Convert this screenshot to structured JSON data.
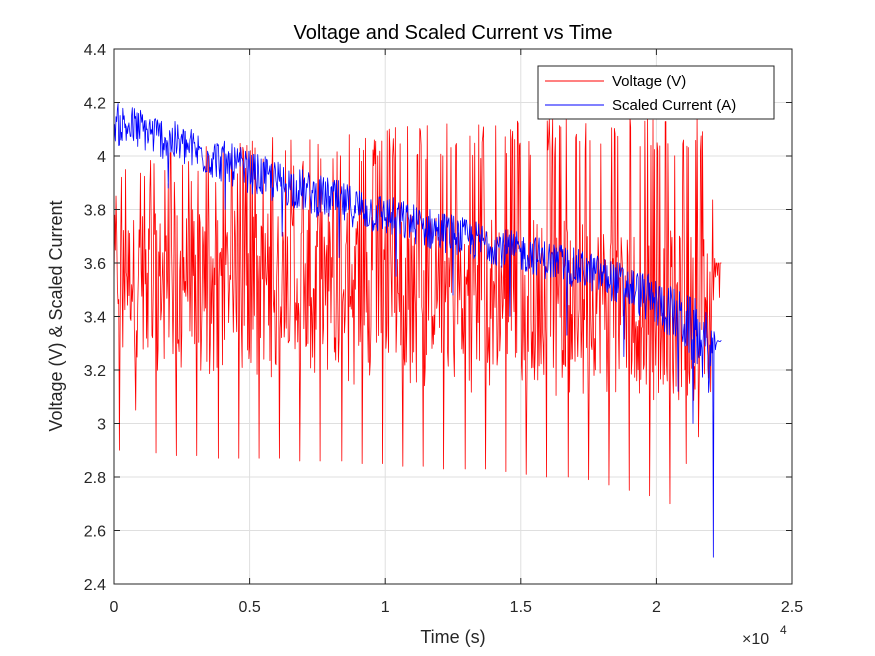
{
  "chart_data": {
    "type": "line",
    "title": "Voltage and Scaled Current vs Time",
    "xlabel": "Time (s)",
    "ylabel": "Voltage (V) & Scaled Current",
    "x_exponent_base": "×10",
    "x_exponent_power": "4",
    "xlim": [
      0,
      25000
    ],
    "ylim": [
      2.4,
      4.4
    ],
    "x_ticks": [
      0,
      5000,
      10000,
      15000,
      20000,
      25000
    ],
    "x_tick_labels": [
      "0",
      "0.5",
      "1",
      "1.5",
      "2",
      "2.5"
    ],
    "y_ticks": [
      2.4,
      2.6,
      2.8,
      3.0,
      3.2,
      3.4,
      3.6,
      3.8,
      4.0,
      4.2,
      4.4
    ],
    "y_tick_labels": [
      "2.4",
      "2.6",
      "2.8",
      "3",
      "3.2",
      "3.4",
      "3.6",
      "3.8",
      "4",
      "4.2",
      "4.4"
    ],
    "grid": true,
    "legend_position": "top-right",
    "series": [
      {
        "name": "Voltage (V)",
        "color": "#ff0000",
        "x": [
          0,
          500,
          1000,
          1500,
          2000,
          2500,
          3000,
          3500,
          4000,
          4500,
          5000,
          5500,
          6000,
          6500,
          7000,
          7500,
          8000,
          8500,
          9000,
          9500,
          10000,
          10500,
          11000,
          11500,
          12000,
          12500,
          13000,
          13500,
          14000,
          14500,
          15000,
          15500,
          16000,
          16500,
          17000,
          17500,
          18000,
          18500,
          19000,
          19500,
          20000,
          20500,
          21000,
          21500,
          22000,
          22200,
          22400
        ],
        "mid": [
          3.58,
          3.56,
          3.57,
          3.56,
          3.55,
          3.56,
          3.57,
          3.56,
          3.55,
          3.56,
          3.56,
          3.55,
          3.56,
          3.55,
          3.54,
          3.55,
          3.55,
          3.54,
          3.55,
          3.54,
          3.53,
          3.54,
          3.53,
          3.52,
          3.53,
          3.52,
          3.51,
          3.52,
          3.51,
          3.5,
          3.5,
          3.49,
          3.49,
          3.48,
          3.48,
          3.47,
          3.47,
          3.46,
          3.45,
          3.45,
          3.44,
          3.43,
          3.42,
          3.42,
          3.45,
          3.6,
          3.6
        ],
        "hi": [
          3.98,
          4.0,
          4.02,
          4.02,
          4.03,
          4.04,
          4.04,
          4.05,
          4.05,
          4.06,
          4.06,
          4.07,
          4.07,
          4.08,
          4.08,
          4.09,
          4.09,
          4.1,
          4.1,
          4.1,
          4.11,
          4.11,
          4.12,
          4.12,
          4.12,
          4.13,
          4.13,
          4.13,
          4.13,
          4.14,
          4.14,
          4.14,
          4.14,
          4.14,
          4.15,
          4.15,
          4.15,
          4.15,
          4.15,
          4.15,
          4.15,
          4.15,
          4.15,
          4.15,
          4.15,
          3.6,
          3.6
        ],
        "lo": [
          3.25,
          3.22,
          3.2,
          3.2,
          3.19,
          3.19,
          3.18,
          3.18,
          3.18,
          3.17,
          3.17,
          3.17,
          3.16,
          3.16,
          3.16,
          3.15,
          3.15,
          3.15,
          3.14,
          3.14,
          3.14,
          3.13,
          3.13,
          3.13,
          3.12,
          3.12,
          3.12,
          3.11,
          3.11,
          3.11,
          3.1,
          3.1,
          3.1,
          3.1,
          3.09,
          3.09,
          3.09,
          3.08,
          3.08,
          3.08,
          3.08,
          3.07,
          3.07,
          3.07,
          3.1,
          3.6,
          3.6
        ],
        "spikes": [
          {
            "x": 200,
            "y": 2.9
          },
          {
            "x": 800,
            "y": 3.05
          },
          {
            "x": 1550,
            "y": 2.89
          },
          {
            "x": 2300,
            "y": 2.88
          },
          {
            "x": 3050,
            "y": 2.88
          },
          {
            "x": 3850,
            "y": 2.87
          },
          {
            "x": 4600,
            "y": 2.87
          },
          {
            "x": 5350,
            "y": 2.87
          },
          {
            "x": 6100,
            "y": 2.87
          },
          {
            "x": 6850,
            "y": 2.86
          },
          {
            "x": 7600,
            "y": 2.86
          },
          {
            "x": 8400,
            "y": 2.86
          },
          {
            "x": 9150,
            "y": 2.85
          },
          {
            "x": 9900,
            "y": 2.85
          },
          {
            "x": 10650,
            "y": 2.84
          },
          {
            "x": 11400,
            "y": 2.84
          },
          {
            "x": 12150,
            "y": 2.83
          },
          {
            "x": 12950,
            "y": 2.83
          },
          {
            "x": 13700,
            "y": 2.83
          },
          {
            "x": 14450,
            "y": 2.82
          },
          {
            "x": 15200,
            "y": 2.81
          },
          {
            "x": 15950,
            "y": 2.8
          },
          {
            "x": 16750,
            "y": 2.8
          },
          {
            "x": 17500,
            "y": 2.79
          },
          {
            "x": 18250,
            "y": 2.77
          },
          {
            "x": 19000,
            "y": 2.75
          },
          {
            "x": 19750,
            "y": 2.73
          },
          {
            "x": 20500,
            "y": 2.7
          },
          {
            "x": 21100,
            "y": 2.85
          },
          {
            "x": 21550,
            "y": 2.95
          }
        ]
      },
      {
        "name": "Scaled Current (A)",
        "color": "#0000ff",
        "x": [
          0,
          500,
          1000,
          1500,
          2000,
          2500,
          3000,
          3500,
          4000,
          4500,
          5000,
          5500,
          6000,
          6500,
          7000,
          7500,
          8000,
          8500,
          9000,
          9500,
          10000,
          10500,
          11000,
          11500,
          12000,
          12500,
          13000,
          13500,
          14000,
          14500,
          15000,
          15500,
          16000,
          16500,
          17000,
          17500,
          18000,
          18500,
          19000,
          19500,
          20000,
          20500,
          21000,
          21500,
          22000,
          22200,
          22400
        ],
        "mid": [
          4.12,
          4.11,
          4.1,
          4.08,
          4.06,
          4.04,
          4.02,
          4.0,
          3.98,
          3.96,
          3.94,
          3.92,
          3.9,
          3.89,
          3.87,
          3.85,
          3.84,
          3.82,
          3.81,
          3.79,
          3.78,
          3.76,
          3.75,
          3.73,
          3.72,
          3.71,
          3.69,
          3.68,
          3.67,
          3.65,
          3.64,
          3.63,
          3.61,
          3.6,
          3.58,
          3.57,
          3.55,
          3.53,
          3.51,
          3.48,
          3.45,
          3.42,
          3.38,
          3.33,
          3.25,
          3.3,
          3.31
        ],
        "hi": [
          4.2,
          4.2,
          4.18,
          4.16,
          4.14,
          4.12,
          4.1,
          4.08,
          4.06,
          4.04,
          4.02,
          4.0,
          3.99,
          3.97,
          3.95,
          3.93,
          3.92,
          3.9,
          3.89,
          3.87,
          3.86,
          3.84,
          3.82,
          3.81,
          3.8,
          3.78,
          3.76,
          3.75,
          3.74,
          3.72,
          3.71,
          3.7,
          3.68,
          3.67,
          3.65,
          3.64,
          3.62,
          3.61,
          3.59,
          3.56,
          3.53,
          3.5,
          3.46,
          3.42,
          3.35,
          3.31,
          3.31
        ],
        "lo": [
          4.04,
          4.03,
          4.02,
          4.0,
          3.98,
          3.96,
          3.94,
          3.92,
          3.9,
          3.88,
          3.86,
          3.84,
          3.82,
          3.81,
          3.79,
          3.77,
          3.76,
          3.74,
          3.73,
          3.71,
          3.7,
          3.68,
          3.67,
          3.65,
          3.64,
          3.63,
          3.61,
          3.6,
          3.59,
          3.57,
          3.56,
          3.55,
          3.53,
          3.52,
          3.5,
          3.49,
          3.47,
          3.45,
          3.42,
          3.38,
          3.34,
          3.3,
          3.24,
          3.15,
          3.05,
          3.29,
          3.31
        ],
        "spikes": [
          {
            "x": 22100,
            "y": 2.5
          },
          {
            "x": 21350,
            "y": 3.0
          },
          {
            "x": 20800,
            "y": 3.12
          },
          {
            "x": 2000,
            "y": 3.88
          },
          {
            "x": 4100,
            "y": 3.8
          },
          {
            "x": 6200,
            "y": 3.7
          },
          {
            "x": 8300,
            "y": 3.62
          },
          {
            "x": 10400,
            "y": 3.55
          },
          {
            "x": 12500,
            "y": 3.48
          },
          {
            "x": 14600,
            "y": 3.4
          },
          {
            "x": 16700,
            "y": 3.33
          },
          {
            "x": 18800,
            "y": 3.25
          }
        ]
      }
    ]
  }
}
